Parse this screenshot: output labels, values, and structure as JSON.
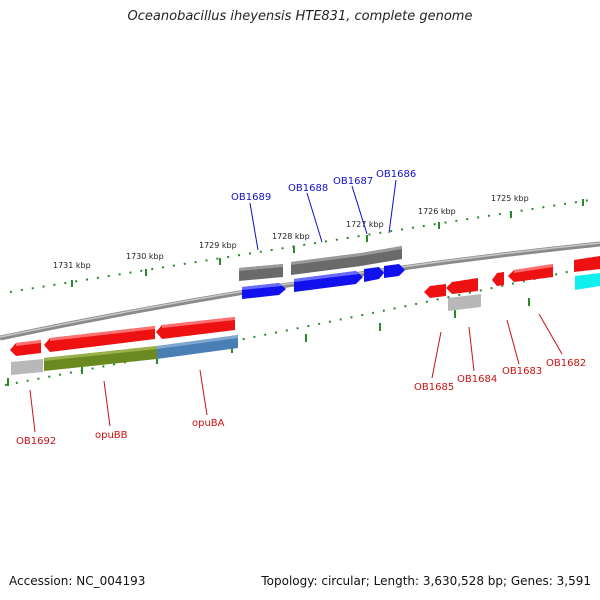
{
  "header": {
    "title": "Oceanobacillus iheyensis HTE831, complete genome"
  },
  "footer": {
    "accession": "Accession: NC_004193",
    "summary": "Topology: circular; Length: 3,630,528 bp; Genes: 3,591"
  },
  "scale": {
    "marks": [
      "1725 kbp",
      "1726 kbp",
      "1727 kbp",
      "1728 kbp",
      "1729 kbp",
      "1730 kbp",
      "1731 kbp"
    ]
  },
  "labels": {
    "top": [
      "OB1689",
      "OB1688",
      "OB1687",
      "OB1686"
    ],
    "bottom_left": [
      "OB1692",
      "opuBB",
      "opuBA"
    ],
    "bottom_right": [
      "OB1685",
      "OB1684",
      "OB1683",
      "OB1682"
    ]
  },
  "colors": {
    "backbone": "#8a8a8a",
    "tick": "#2a8a2a",
    "gene_red": "#ee1111",
    "gene_blue": "#1111ee",
    "gene_gray": "#6a6a6a",
    "gene_lightgray": "#b8b8b8",
    "gene_olive": "#6a8a20",
    "gene_steelblue": "#4a7fb5",
    "gene_cyan": "#11eeee",
    "label_top": "#1010cc",
    "label_bottom": "#cc1010"
  }
}
